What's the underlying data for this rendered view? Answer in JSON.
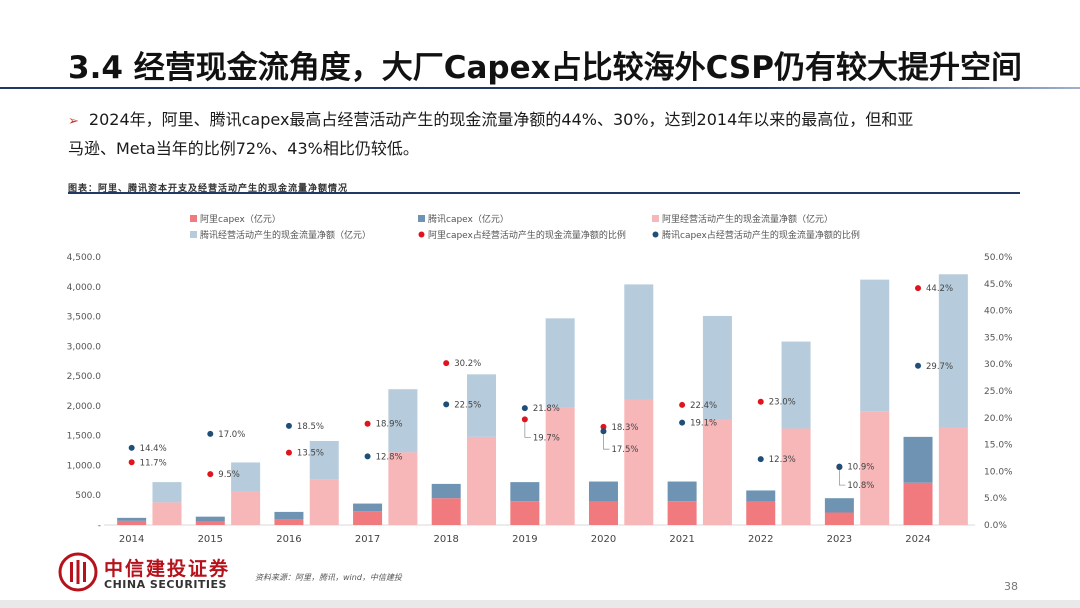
{
  "title": "3.4 经营现金流角度，大厂Capex占比较海外CSP仍有较大提升空间",
  "bullet": {
    "marker": "➢",
    "line1": "2024年，阿里、腾讯capex最高占经营活动产生的现金流量净额的44%、30%，达到2014年以来的最高位，但和亚",
    "line2": "马逊、Meta当年的比例72%、43%相比仍较低。"
  },
  "figure_caption": "图表：阿里、腾讯资本开支及经营活动产生的现金流量净额情况",
  "source": "资料来源：阿里，腾讯，wind，中信建投",
  "page_number": "38",
  "logo": {
    "cn": "中信建投证券",
    "en": "CHINA SECURITIES"
  },
  "colors": {
    "ali_capex": "#f07a7e",
    "tencent_capex": "#6f94b3",
    "ali_ocf": "#f7b6b8",
    "tencent_ocf": "#b6cbdb",
    "ali_ratio": "#e0141e",
    "tencent_ratio": "#1f4e79"
  },
  "chart_data": {
    "type": "bar",
    "categories": [
      "2014",
      "2015",
      "2016",
      "2017",
      "2018",
      "2019",
      "2020",
      "2021",
      "2022",
      "2023",
      "2024"
    ],
    "series": [
      {
        "name": "阿里capex（亿元）",
        "axis": "left",
        "values": [
          70,
          60,
          100,
          230,
          450,
          400,
          390,
          400,
          390,
          210,
          710
        ]
      },
      {
        "name": "腾讯capex（亿元）",
        "axis": "left",
        "values": [
          50,
          80,
          120,
          130,
          240,
          320,
          340,
          330,
          190,
          240,
          770
        ]
      },
      {
        "name": "阿里经营活动产生的现金流量净额（亿元）",
        "axis": "left",
        "values": [
          380,
          570,
          760,
          1220,
          1480,
          1980,
          2100,
          1780,
          1620,
          1910,
          1630
        ]
      },
      {
        "name": "腾讯经营活动产生的现金流量净额（亿元）",
        "axis": "left",
        "values": [
          340,
          480,
          650,
          1060,
          1050,
          1490,
          1940,
          1730,
          1460,
          2210,
          2580
        ]
      },
      {
        "name": "阿里capex占经营活动产生的现金流量净额的比例",
        "axis": "right",
        "values": [
          11.7,
          9.5,
          13.5,
          18.9,
          30.2,
          19.7,
          18.3,
          22.4,
          23.0,
          10.8,
          44.2
        ]
      },
      {
        "name": "腾讯capex占经营活动产生的现金流量净额的比例",
        "axis": "right",
        "values": [
          14.4,
          17.0,
          18.5,
          12.8,
          22.5,
          21.8,
          17.5,
          19.1,
          12.3,
          10.9,
          29.7
        ]
      }
    ],
    "ali_ratio_labels": [
      "11.7%",
      "9.5%",
      "13.5%",
      "18.9%",
      "30.2%",
      "19.7%",
      "18.3%",
      "22.4%",
      "23.0%",
      "10.8%",
      "44.2%"
    ],
    "tencent_ratio_labels": [
      "14.4%",
      "17.0%",
      "18.5%",
      "12.8%",
      "22.5%",
      "21.8%",
      "17.5%",
      "19.1%",
      "12.3%",
      "10.9%",
      "29.7%"
    ],
    "left_axis": {
      "ylim": [
        0,
        4500
      ],
      "ticks": [
        0,
        500,
        1000,
        1500,
        2000,
        2500,
        3000,
        3500,
        4000,
        4500
      ],
      "tick_labels": [
        "-",
        "500.0",
        "1,000.0",
        "1,500.0",
        "2,000.0",
        "2,500.0",
        "3,000.0",
        "3,500.0",
        "4,000.0",
        "4,500.0"
      ]
    },
    "right_axis": {
      "ylim": [
        0,
        50
      ],
      "ticks": [
        0,
        5,
        10,
        15,
        20,
        25,
        30,
        35,
        40,
        45,
        50
      ],
      "tick_labels": [
        "0.0%",
        "5.0%",
        "10.0%",
        "15.0%",
        "20.0%",
        "25.0%",
        "30.0%",
        "35.0%",
        "40.0%",
        "45.0%",
        "50.0%"
      ]
    },
    "grid": false,
    "legend_position": "top"
  }
}
